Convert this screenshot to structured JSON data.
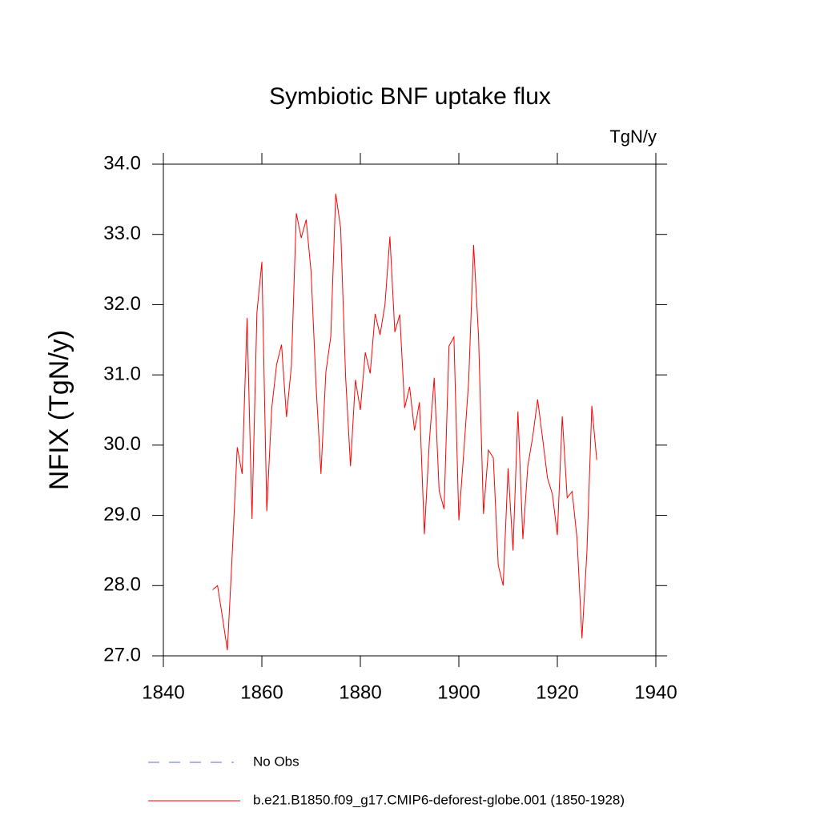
{
  "chart_data": {
    "type": "line",
    "title": "Symbiotic BNF uptake flux",
    "units": "TgN/y",
    "y_label": "NFIX  (TgN/y)",
    "x": [
      1850,
      1851,
      1852,
      1853,
      1854,
      1855,
      1856,
      1857,
      1858,
      1859,
      1860,
      1861,
      1862,
      1863,
      1864,
      1865,
      1866,
      1867,
      1868,
      1869,
      1870,
      1871,
      1872,
      1873,
      1874,
      1875,
      1876,
      1877,
      1878,
      1879,
      1880,
      1881,
      1882,
      1883,
      1884,
      1885,
      1886,
      1887,
      1888,
      1889,
      1890,
      1891,
      1892,
      1893,
      1894,
      1895,
      1896,
      1897,
      1898,
      1899,
      1900,
      1901,
      1902,
      1903,
      1904,
      1905,
      1906,
      1907,
      1908,
      1909,
      1910,
      1911,
      1912,
      1913,
      1914,
      1915,
      1916,
      1917,
      1918,
      1919,
      1920,
      1921,
      1922,
      1923,
      1924,
      1925,
      1926,
      1927,
      1928
    ],
    "series": [
      {
        "name": "b.e21.B1850.f09_g17.CMIP6-deforest-globe.001 (1850-1928)",
        "color": "#ff0000",
        "values": [
          27.94,
          28.0,
          27.55,
          27.08,
          28.47,
          29.97,
          29.59,
          31.81,
          28.95,
          31.89,
          32.61,
          29.06,
          30.52,
          31.15,
          31.43,
          30.4,
          31.13,
          33.3,
          32.95,
          33.21,
          32.46,
          30.86,
          29.59,
          31.04,
          31.55,
          33.58,
          33.09,
          30.98,
          29.7,
          30.93,
          30.5,
          31.32,
          31.02,
          31.87,
          31.57,
          32.0,
          32.97,
          31.61,
          31.86,
          30.53,
          30.83,
          30.21,
          30.61,
          28.73,
          30.04,
          30.96,
          29.35,
          29.09,
          31.41,
          31.54,
          28.93,
          29.9,
          30.92,
          32.85,
          31.55,
          29.02,
          29.93,
          29.82,
          28.29,
          28.0,
          29.67,
          28.5,
          30.48,
          28.66,
          29.7,
          30.12,
          30.65,
          30.1,
          29.53,
          29.3,
          28.72,
          30.41,
          29.25,
          29.34,
          28.67,
          27.25,
          28.47,
          30.56,
          29.79
        ]
      }
    ],
    "legend_extra": {
      "name": "No Obs",
      "color": "#6a6acd",
      "dash": true
    },
    "xlim": [
      1840,
      1940
    ],
    "xticks": [
      1840,
      1860,
      1880,
      1900,
      1920,
      1940
    ],
    "ylim": [
      27,
      34
    ],
    "yticks": [
      {
        "value": 27,
        "label": "27.0"
      },
      {
        "value": 28,
        "label": "28.0"
      },
      {
        "value": 29,
        "label": "29.0"
      },
      {
        "value": 30,
        "label": "30.0"
      },
      {
        "value": 31,
        "label": "31.0"
      },
      {
        "value": 32,
        "label": "32.0"
      },
      {
        "value": 33,
        "label": "33.0"
      },
      {
        "value": 34,
        "label": "34.0"
      }
    ]
  }
}
